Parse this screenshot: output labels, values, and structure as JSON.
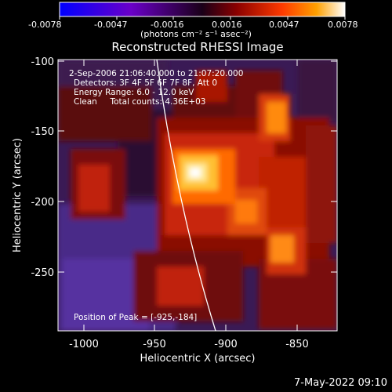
{
  "colorbar": {
    "ticks": [
      "-0.0078",
      "-0.0047",
      "-0.0016",
      "0.0016",
      "0.0047",
      "0.0078"
    ],
    "unit": "(photons cm⁻² s⁻¹ asec⁻²)",
    "colors": [
      "#0000ff",
      "#6a00c8",
      "#2a0030",
      "#7a0000",
      "#ff3000",
      "#ff9a00",
      "#ffffff"
    ]
  },
  "plot": {
    "title": "Reconstructed RHESSI Image",
    "xlabel": "Heliocentric X (arcsec)",
    "ylabel": "Heliocentric Y (arcsec)",
    "xticks": [
      "-1000",
      "-950",
      "-900",
      "-850"
    ],
    "yticks": [
      "-100",
      "-150",
      "-200",
      "-250"
    ],
    "annotations": {
      "time": "2-Sep-2006 21:06:40.000 to 21:07:20.000",
      "detectors": "Detectors: 3F 4F 5F 6F 7F 8F, Att 0",
      "energy": "Energy Range: 6.0 - 12.0 keV",
      "clean": "Clean     Total counts: 4.36E+03",
      "peak": "Position of Peak = [-925,-184]"
    }
  },
  "footer": {
    "timestamp": "7-May-2022 09:10"
  }
}
